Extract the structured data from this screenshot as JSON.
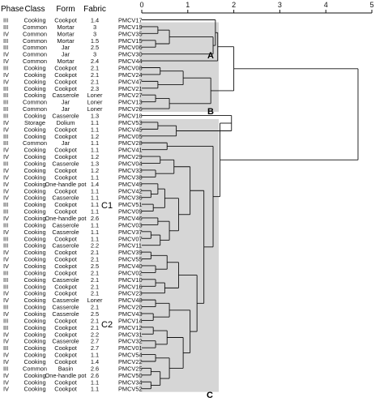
{
  "headers": {
    "phase": "Phase",
    "class": "Class",
    "form": "Form",
    "fabric": "Fabric"
  },
  "axis": {
    "ticks": [
      "0",
      "1",
      "2",
      "3",
      "4",
      "5"
    ],
    "min": 0,
    "max": 5
  },
  "group_labels": {
    "A": "A",
    "B": "B",
    "C": "C",
    "C1": "C1",
    "C2": "C2"
  },
  "colors": {
    "shade": "#d6d6d6",
    "line": "#111111",
    "text": "#111111"
  },
  "rows": [
    {
      "phase": "III",
      "class": "Cooking",
      "form": "Cookpot",
      "fabric": "1.4",
      "sample": "PMCV17"
    },
    {
      "phase": "III",
      "class": "Common",
      "form": "Mortar",
      "fabric": "3",
      "sample": "PMCV19"
    },
    {
      "phase": "IV",
      "class": "Common",
      "form": "Mortar",
      "fabric": "3",
      "sample": "PMCV35"
    },
    {
      "phase": "III",
      "class": "Common",
      "form": "Mortar",
      "fabric": "1.5",
      "sample": "PMCV15"
    },
    {
      "phase": "III",
      "class": "Common",
      "form": "Jar",
      "fabric": "2.5",
      "sample": "PMCV06"
    },
    {
      "phase": "IV",
      "class": "Common",
      "form": "Jar",
      "fabric": "3",
      "sample": "PMCV30"
    },
    {
      "phase": "IV",
      "class": "Common",
      "form": "Mortar",
      "fabric": "2.4",
      "sample": "PMCV44"
    },
    {
      "phase": "III",
      "class": "Cooking",
      "form": "Cookpot",
      "fabric": "2.1",
      "sample": "PMCV08"
    },
    {
      "phase": "IV",
      "class": "Cooking",
      "form": "Cookpot",
      "fabric": "2.1",
      "sample": "PMCV24"
    },
    {
      "phase": "IV",
      "class": "Cooking",
      "form": "Cookpot",
      "fabric": "2.1",
      "sample": "PMCV47"
    },
    {
      "phase": "III",
      "class": "Cooking",
      "form": "Cookpot",
      "fabric": "2.3",
      "sample": "PMCV21"
    },
    {
      "phase": "III",
      "class": "Cooking",
      "form": "Casserole",
      "fabric": "Loner",
      "sample": "PMCV27"
    },
    {
      "phase": "III",
      "class": "Common",
      "form": "Jar",
      "fabric": "Loner",
      "sample": "PMCV13"
    },
    {
      "phase": "III",
      "class": "Common",
      "form": "Jar",
      "fabric": "Loner",
      "sample": "PMCV26"
    },
    {
      "phase": "III",
      "class": "Cooking",
      "form": "Casserole",
      "fabric": "1.3",
      "sample": "PMCV18"
    },
    {
      "phase": "IV",
      "class": "Storage",
      "form": "Dolium",
      "fabric": "1.1",
      "sample": "PMCV53"
    },
    {
      "phase": "IV",
      "class": "Cooking",
      "form": "Cookpot",
      "fabric": "1.1",
      "sample": "PMCV45"
    },
    {
      "phase": "III",
      "class": "Cooking",
      "form": "Cookpot",
      "fabric": "1.2",
      "sample": "PMCV05"
    },
    {
      "phase": "III",
      "class": "Common",
      "form": "Jar",
      "fabric": "1.1",
      "sample": "PMCV28"
    },
    {
      "phase": "IV",
      "class": "Cooking",
      "form": "Cookpot",
      "fabric": "1.1",
      "sample": "PMCV41"
    },
    {
      "phase": "IV",
      "class": "Cooking",
      "form": "Cookpot",
      "fabric": "1.2",
      "sample": "PMCV29"
    },
    {
      "phase": "III",
      "class": "Cooking",
      "form": "Casserole",
      "fabric": "1.3",
      "sample": "PMCV04"
    },
    {
      "phase": "IV",
      "class": "Cooking",
      "form": "Cookpot",
      "fabric": "1.2",
      "sample": "PMCV33"
    },
    {
      "phase": "IV",
      "class": "Cooking",
      "form": "Cookpot",
      "fabric": "1.1",
      "sample": "PMCV38"
    },
    {
      "phase": "IV",
      "class": "Cooking",
      "form": "One-handle pot",
      "fabric": "1.4",
      "sample": "PMCV49"
    },
    {
      "phase": "IV",
      "class": "Cooking",
      "form": "Cookpot",
      "fabric": "1.1",
      "sample": "PMCV42"
    },
    {
      "phase": "IV",
      "class": "Cooking",
      "form": "Casserole",
      "fabric": "1.1",
      "sample": "PMCV36"
    },
    {
      "phase": "III",
      "class": "Cooking",
      "form": "Cookpot",
      "fabric": "1.1",
      "sample": "PMCV51"
    },
    {
      "phase": "III",
      "class": "Cooking",
      "form": "Cookpot",
      "fabric": "1.1",
      "sample": "PMCV09"
    },
    {
      "phase": "IV",
      "class": "Cooking",
      "form": "One-handle pot",
      "fabric": "2.6",
      "sample": "PMCV46"
    },
    {
      "phase": "III",
      "class": "Cooking",
      "form": "Casserole",
      "fabric": "1.1",
      "sample": "PMCV03"
    },
    {
      "phase": "IV",
      "class": "Cooking",
      "form": "Casserole",
      "fabric": "1.1",
      "sample": "PMCV37"
    },
    {
      "phase": "III",
      "class": "Cooking",
      "form": "Cookpot",
      "fabric": "1.1",
      "sample": "PMCV07"
    },
    {
      "phase": "III",
      "class": "Cooking",
      "form": "Casserole",
      "fabric": "2.2",
      "sample": "PMCV11"
    },
    {
      "phase": "IV",
      "class": "Cooking",
      "form": "Cookpot",
      "fabric": "2.1",
      "sample": "PMCV39"
    },
    {
      "phase": "IV",
      "class": "Cooking",
      "form": "Cookpot",
      "fabric": "2.1",
      "sample": "PMCV55"
    },
    {
      "phase": "IV",
      "class": "Cooking",
      "form": "Cookpot",
      "fabric": "2.5",
      "sample": "PMCV40"
    },
    {
      "phase": "III",
      "class": "Cooking",
      "form": "Cookpot",
      "fabric": "2.1",
      "sample": "PMCV02"
    },
    {
      "phase": "III",
      "class": "Cooking",
      "form": "Casserole",
      "fabric": "2.1",
      "sample": "PMCV10"
    },
    {
      "phase": "III",
      "class": "Cooking",
      "form": "Cookpot",
      "fabric": "2.1",
      "sample": "PMCV16"
    },
    {
      "phase": "IV",
      "class": "Cooking",
      "form": "Cookpot",
      "fabric": "2.1",
      "sample": "PMCV23"
    },
    {
      "phase": "IV",
      "class": "Cooking",
      "form": "Casserole",
      "fabric": "Loner",
      "sample": "PMCV48"
    },
    {
      "phase": "III",
      "class": "Cooking",
      "form": "Casserole",
      "fabric": "2.1",
      "sample": "PMCV20"
    },
    {
      "phase": "IV",
      "class": "Cooking",
      "form": "Casserole",
      "fabric": "2.5",
      "sample": "PMCV43"
    },
    {
      "phase": "III",
      "class": "Cooking",
      "form": "Cookpot",
      "fabric": "2.1",
      "sample": "PMCV14"
    },
    {
      "phase": "III",
      "class": "Cooking",
      "form": "Cookpot",
      "fabric": "2.1",
      "sample": "PMCV12"
    },
    {
      "phase": "IV",
      "class": "Cooking",
      "form": "Cookpot",
      "fabric": "2.2",
      "sample": "PMCV31"
    },
    {
      "phase": "IV",
      "class": "Cooking",
      "form": "Casserole",
      "fabric": "2.7",
      "sample": "PMCV32"
    },
    {
      "phase": "III",
      "class": "Cooking",
      "form": "Cookpot",
      "fabric": "2.7",
      "sample": "PMCV01"
    },
    {
      "phase": "IV",
      "class": "Cooking",
      "form": "Cookpot",
      "fabric": "1.1",
      "sample": "PMCV54"
    },
    {
      "phase": "IV",
      "class": "Cooking",
      "form": "Cookpot",
      "fabric": "1.4",
      "sample": "PMCV22"
    },
    {
      "phase": "III",
      "class": "Common",
      "form": "Basin",
      "fabric": "2.6",
      "sample": "PMCV25"
    },
    {
      "phase": "IV",
      "class": "Cooking",
      "form": "One-handle pot",
      "fabric": "2.6",
      "sample": "PMCV50"
    },
    {
      "phase": "IV",
      "class": "Cooking",
      "form": "Cookpot",
      "fabric": "1.1",
      "sample": "PMCV34"
    },
    {
      "phase": "IV",
      "class": "Cooking",
      "form": "Cookpot",
      "fabric": "1.1",
      "sample": "PMCV52"
    }
  ]
}
